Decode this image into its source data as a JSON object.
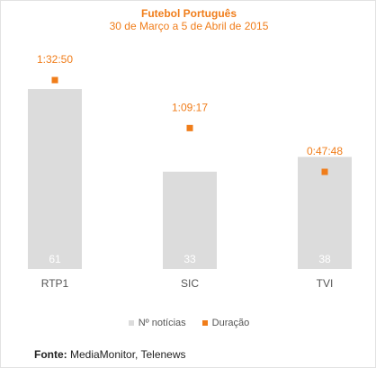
{
  "colors": {
    "bars": "#dcdcdc",
    "markers": "#f07d1a",
    "bar_label": "#ffffff",
    "category_label": "#555555"
  },
  "source": {
    "label": "Fonte:",
    "text": "MediaMonitor, Telenews"
  },
  "chart_data": {
    "type": "bar",
    "title": "Futebol Português",
    "subtitle": "30 de Março a 5 de Abril de 2015",
    "categories": [
      "RTP1",
      "SIC",
      "TVI"
    ],
    "series": [
      {
        "name": "Nº notícias",
        "type": "bar",
        "values": [
          61,
          33,
          38
        ],
        "labels": [
          "61",
          "33",
          "38"
        ]
      },
      {
        "name": "Duração",
        "type": "scatter",
        "values": [
          5570,
          4157,
          2868
        ],
        "labels": [
          "1:32:50",
          "1:09:17",
          "0:47:48"
        ]
      }
    ],
    "ylim_bars": [
      0,
      61
    ],
    "ylim_duration": [
      0,
      5570
    ],
    "legend_position": "bottom",
    "grid": false
  }
}
